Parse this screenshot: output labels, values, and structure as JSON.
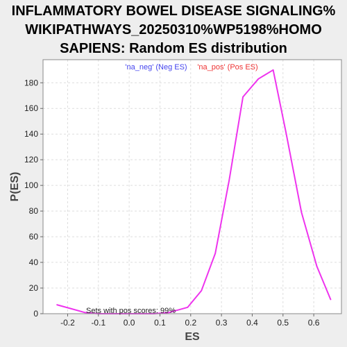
{
  "chart_data": {
    "type": "line",
    "title_lines": [
      "INFLAMMATORY BOWEL DISEASE SIGNALING%",
      "WIKIPATHWAYS_20250310%WP5198%HOMO",
      "SAPIENS: Random ES distribution"
    ],
    "xlabel": "ES",
    "ylabel": "P(ES)",
    "xlim": [
      -0.28,
      0.69
    ],
    "ylim": [
      0,
      198
    ],
    "xticks": [
      "-0.2",
      "-0.1",
      "0.0",
      "0.1",
      "0.2",
      "0.3",
      "0.4",
      "0.5",
      "0.6"
    ],
    "yticks": [
      "0",
      "20",
      "40",
      "60",
      "80",
      "100",
      "120",
      "140",
      "160",
      "180"
    ],
    "grid": true,
    "legend": {
      "placement": "top-center",
      "entries": [
        {
          "label": "'na_neg' (Neg ES)",
          "color": "#4444ee"
        },
        {
          "label": "'na_pos' (Pos ES)",
          "color": "#ee3333"
        }
      ]
    },
    "annotation": "Sets with pos scores: 99%",
    "series": [
      {
        "color": "#ee33ee",
        "x": [
          -0.235,
          -0.19,
          -0.145,
          -0.1,
          -0.055,
          -0.01,
          0.035,
          0.08,
          0.13,
          0.19,
          0.235,
          0.28,
          0.325,
          0.37,
          0.42,
          0.468,
          0.51,
          0.56,
          0.61,
          0.655
        ],
        "y": [
          7,
          4,
          1,
          0,
          0,
          0,
          0,
          0,
          1,
          5,
          18,
          47,
          104,
          169,
          183,
          190,
          141,
          79,
          37,
          11
        ]
      }
    ]
  }
}
